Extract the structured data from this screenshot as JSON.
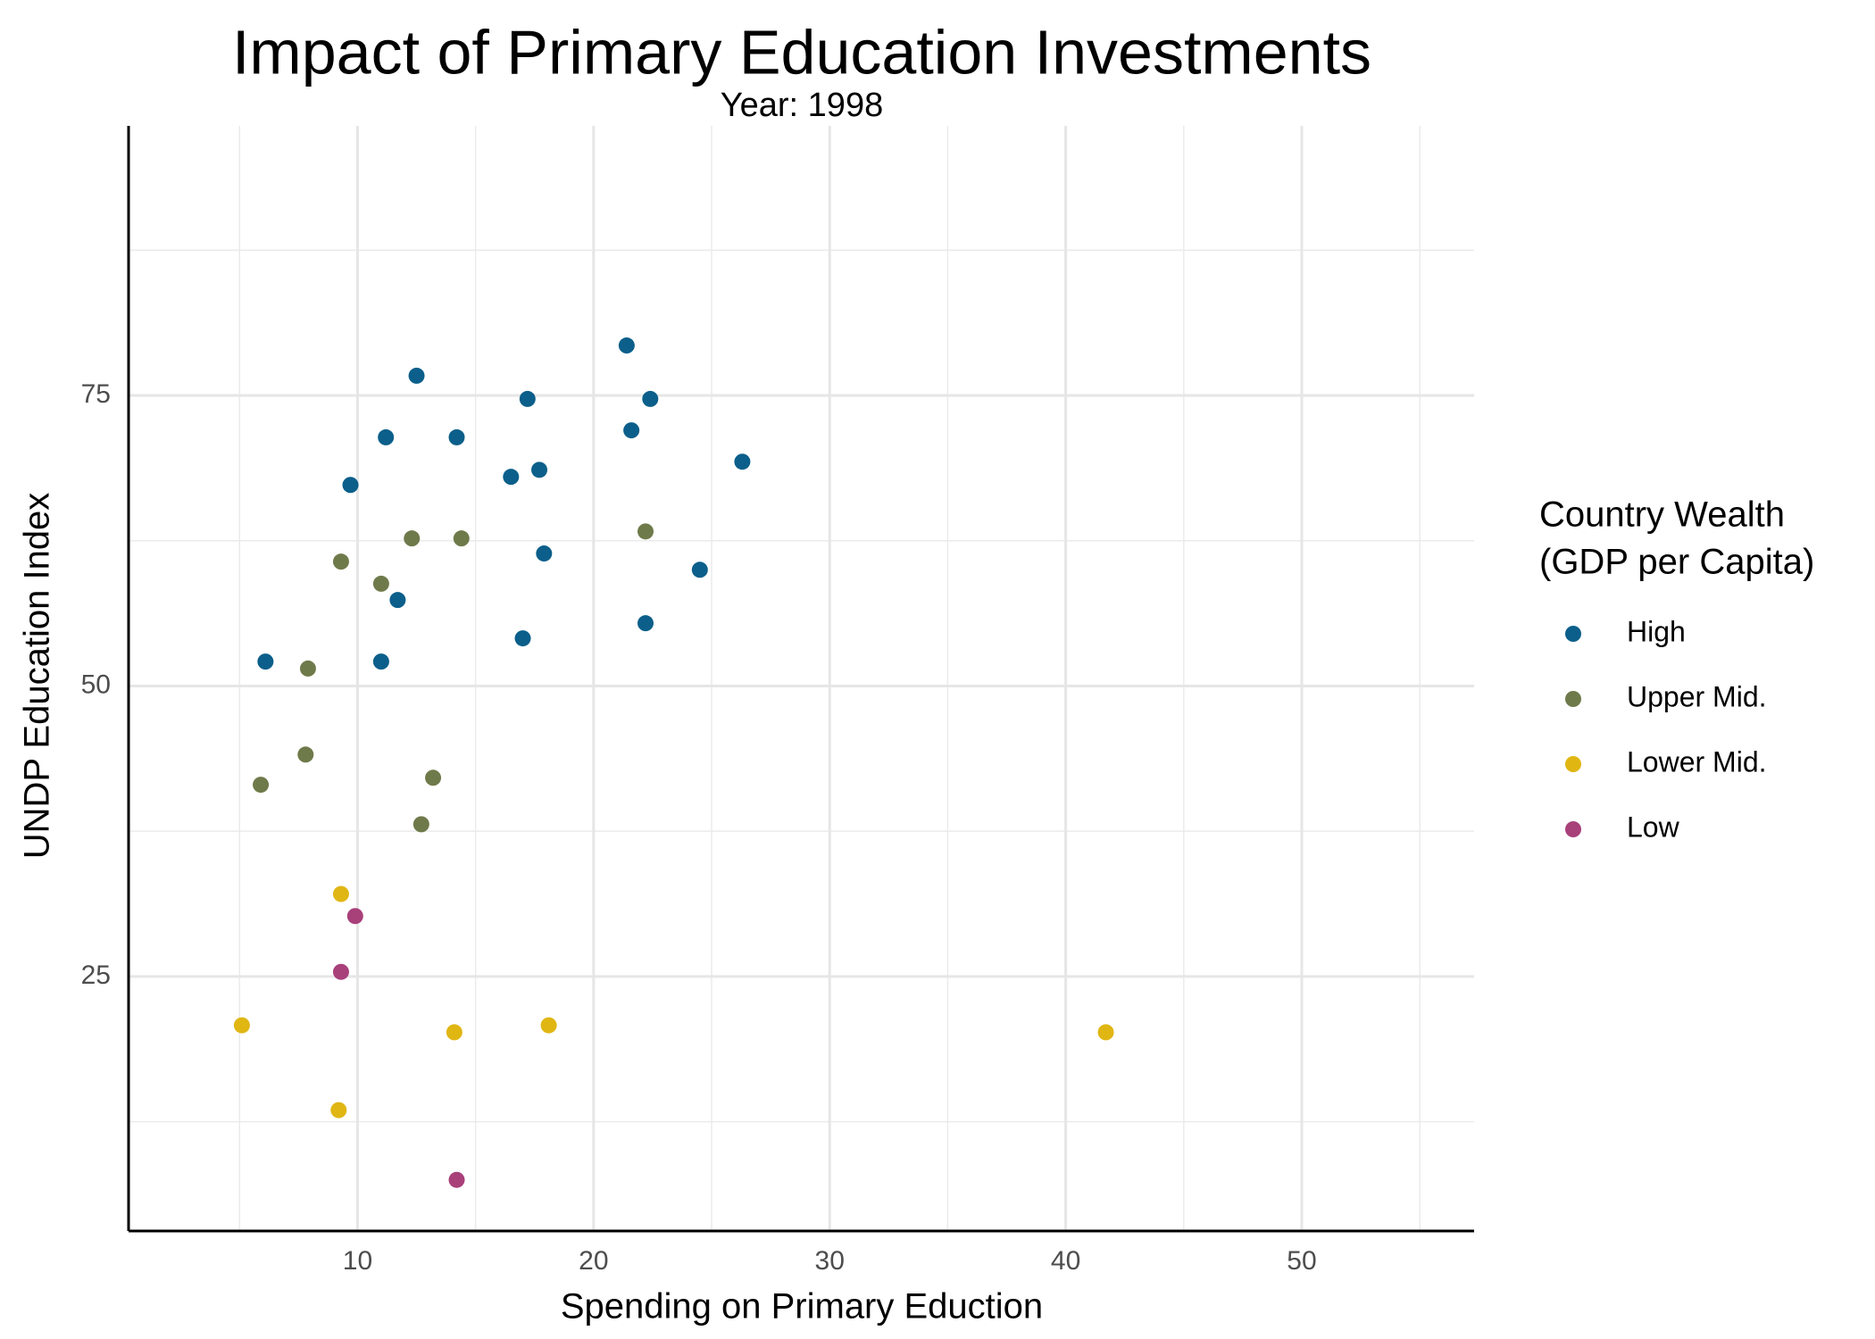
{
  "chart_data": {
    "type": "scatter",
    "title": "Impact of Primary Education Investments",
    "subtitle": "Year: 1998",
    "x_label": "Spending on Primary Eduction",
    "y_label": "UNDP Education Index",
    "legend_title": [
      "Country Wealth",
      "(GDP per Capita)"
    ],
    "legend_position": "right",
    "grid": true,
    "xlim": [
      0.3,
      57.3
    ],
    "ylim": [
      3.1,
      98.2
    ],
    "xticks": [
      10,
      20,
      30,
      40,
      50
    ],
    "yticks": [
      25,
      50,
      75
    ],
    "xminor": [
      5,
      15,
      25,
      35,
      45,
      55
    ],
    "yminor": [
      12.5,
      37.5,
      62.5,
      87.5
    ],
    "series": [
      {
        "name": "High",
        "color": "#0b5f8a",
        "x": [
          21.4,
          12.5,
          17.2,
          22.4,
          21.6,
          11.2,
          14.2,
          26.3,
          17.7,
          16.5,
          9.7,
          17.9,
          24.5,
          11.7,
          22.2,
          17.0,
          6.1,
          11.0
        ],
        "values": [
          79.3,
          76.7,
          74.7,
          74.7,
          72.0,
          71.4,
          71.4,
          69.3,
          68.6,
          68.0,
          67.3,
          61.4,
          60.0,
          57.4,
          55.4,
          54.1,
          52.1,
          52.1
        ]
      },
      {
        "name": "Upper Mid.",
        "color": "#6f7a4b",
        "x": [
          22.2,
          12.3,
          14.4,
          9.3,
          11.0,
          7.9,
          7.8,
          13.2,
          5.9,
          12.7
        ],
        "values": [
          63.3,
          62.7,
          62.7,
          60.7,
          58.8,
          51.5,
          44.1,
          42.1,
          41.5,
          38.1
        ]
      },
      {
        "name": "Lower Mid.",
        "color": "#e0b613",
        "x": [
          9.3,
          5.1,
          18.1,
          14.1,
          41.7,
          9.2
        ],
        "values": [
          32.1,
          20.8,
          20.8,
          20.2,
          20.2,
          13.5
        ]
      },
      {
        "name": "Low",
        "color": "#a8407a",
        "x": [
          9.9,
          9.3,
          14.2
        ],
        "values": [
          30.2,
          25.4,
          7.5
        ]
      }
    ]
  }
}
